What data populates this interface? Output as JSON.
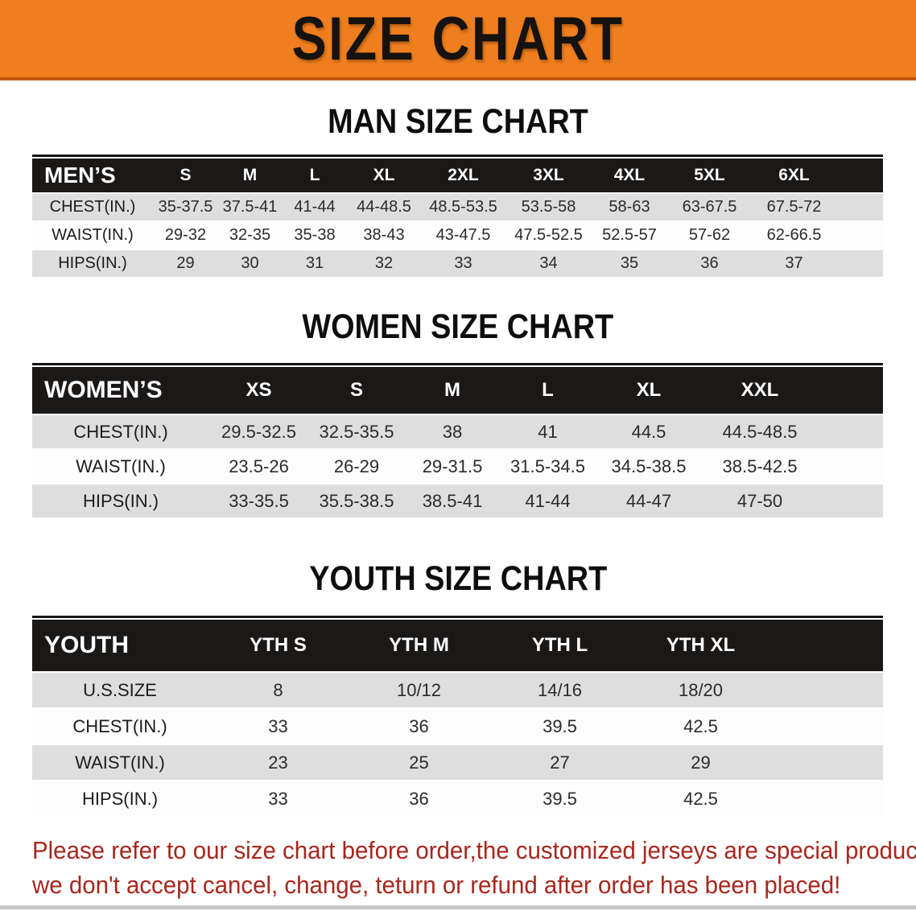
{
  "banner": {
    "title": "SIZE CHART"
  },
  "colors": {
    "banner_bg": "#EE7E1E",
    "banner_border": "#C0570E",
    "table_header_bg": "#1B1918",
    "row_gray": "#DEDEDE",
    "note_red": "#A8271D"
  },
  "tables": [
    {
      "heading": "MAN SIZE CHART",
      "header": [
        "MEN’S",
        "S",
        "M",
        "L",
        "XL",
        "2XL",
        "3XL",
        "4XL",
        "5XL",
        "6XL"
      ],
      "rows": [
        [
          "CHEST(IN.)",
          "35-37.5",
          "37.5-41",
          "41-44",
          "44-48.5",
          "48.5-53.5",
          "53.5-58",
          "58-63",
          "63-67.5",
          "67.5-72"
        ],
        [
          "WAIST(IN.)",
          "29-32",
          "32-35",
          "35-38",
          "38-43",
          "43-47.5",
          "47.5-52.5",
          "52.5-57",
          "57-62",
          "62-66.5"
        ],
        [
          "HIPS(IN.)",
          "29",
          "30",
          "31",
          "32",
          "33",
          "34",
          "35",
          "36",
          "37"
        ]
      ]
    },
    {
      "heading": "WOMEN SIZE CHART",
      "header": [
        "WOMEN’S",
        "XS",
        "S",
        "M",
        "L",
        "XL",
        "XXL"
      ],
      "rows": [
        [
          "CHEST(IN.)",
          "29.5-32.5",
          "32.5-35.5",
          "38",
          "41",
          "44.5",
          "44.5-48.5"
        ],
        [
          "WAIST(IN.)",
          "23.5-26",
          "26-29",
          "29-31.5",
          "31.5-34.5",
          "34.5-38.5",
          "38.5-42.5"
        ],
        [
          "HIPS(IN.)",
          "33-35.5",
          "35.5-38.5",
          "38.5-41",
          "41-44",
          "44-47",
          "47-50"
        ]
      ]
    },
    {
      "heading": "YOUTH SIZE CHART",
      "header": [
        "YOUTH",
        "YTH S",
        "YTH M",
        "YTH L",
        "YTH XL"
      ],
      "rows": [
        [
          "U.S.SIZE",
          "8",
          "10/12",
          "14/16",
          "18/20"
        ],
        [
          "CHEST(IN.)",
          "33",
          "36",
          "39.5",
          "42.5"
        ],
        [
          "WAIST(IN.)",
          "23",
          "25",
          "27",
          "29"
        ],
        [
          "HIPS(IN.)",
          "33",
          "36",
          "39.5",
          "42.5"
        ]
      ]
    }
  ],
  "note": {
    "line1": "Please refer to our size chart before order,the customized jerseys are special products,",
    "line2": "we don't accept cancel, change, teturn or refund after order has been placed!"
  }
}
